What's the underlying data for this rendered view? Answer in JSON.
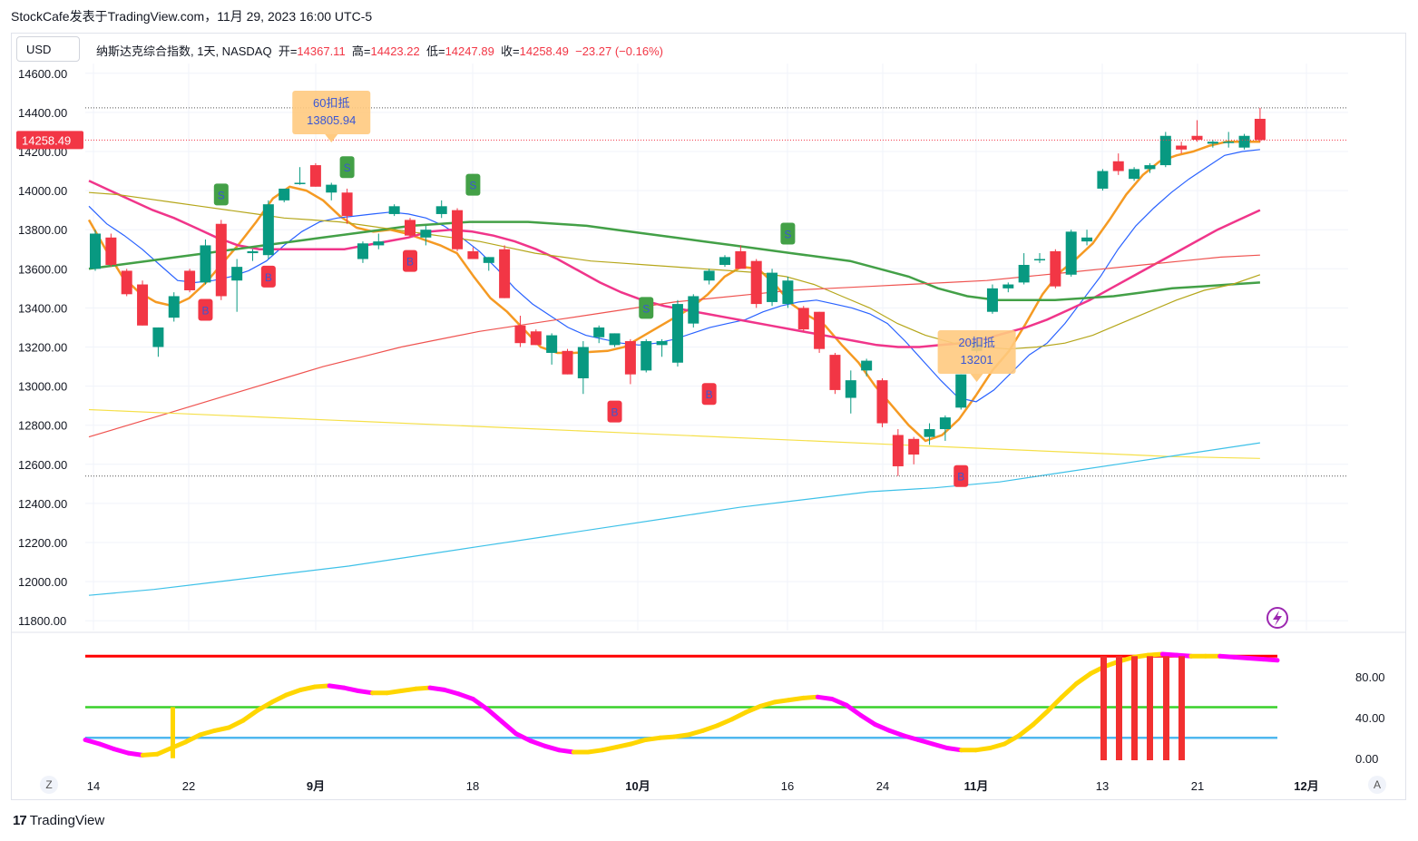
{
  "header": {
    "publisher": "StockCafe发表于TradingView.com，11月 29, 2023 16:00 UTC-5"
  },
  "currency_button": "USD",
  "infobar": {
    "symbol": "纳斯达克综合指数, 1天, NASDAQ",
    "open_label": "开=",
    "open": "14367.11",
    "high_label": "高=",
    "high": "14423.22",
    "low_label": "低=",
    "low": "14247.89",
    "close_label": "收=",
    "close": "14258.49",
    "change": "−23.27 (−0.16%)"
  },
  "price_label": "14258.49",
  "footer": {
    "brand": "TradingView"
  },
  "buttons": {
    "left": "Z",
    "right": "A"
  },
  "colors": {
    "up": "#089981",
    "down": "#f23645",
    "ma_orange": "#f59a23",
    "ma_blue": "#2962ff",
    "ma_pink": "#f0358a",
    "ma_green": "#43a047",
    "ma_olive": "#b5a61a",
    "ma_red": "#ef5350",
    "ma_yellow": "#f5e04a",
    "ma_cyan": "#3ec1e8",
    "osc_up": "#ffd600",
    "osc_down": "#ff00ff",
    "osc_red_line": "#ff0000",
    "osc_green_line": "#39d12a",
    "osc_blue_line": "#4fb8ef"
  },
  "chart_data": [
    {
      "type": "candlestick",
      "title": "纳斯达克综合指数, 1天, NASDAQ",
      "ylim": [
        11750,
        14650
      ],
      "y_ticks": [
        "14600.00",
        "14400.00",
        "14200.00",
        "14000.00",
        "13800.00",
        "13600.00",
        "13400.00",
        "13200.00",
        "13000.00",
        "12800.00",
        "12600.00",
        "12400.00",
        "12200.00",
        "12000.00",
        "11800.00"
      ],
      "x_ticks": [
        "14",
        "22",
        "9月",
        "18",
        "10月",
        "16",
        "24",
        "11月",
        "13",
        "21",
        "12月"
      ],
      "candles": [
        {
          "o": 13600,
          "h": 13800,
          "l": 13590,
          "c": 13780
        },
        {
          "o": 13760,
          "h": 13780,
          "l": 13610,
          "c": 13620
        },
        {
          "o": 13590,
          "h": 13600,
          "l": 13460,
          "c": 13470
        },
        {
          "o": 13520,
          "h": 13540,
          "l": 13310,
          "c": 13310
        },
        {
          "o": 13200,
          "h": 13300,
          "l": 13150,
          "c": 13300
        },
        {
          "o": 13350,
          "h": 13480,
          "l": 13330,
          "c": 13460
        },
        {
          "o": 13590,
          "h": 13600,
          "l": 13480,
          "c": 13490
        },
        {
          "o": 13530,
          "h": 13750,
          "l": 13520,
          "c": 13720
        },
        {
          "o": 13830,
          "h": 13850,
          "l": 13440,
          "c": 13460
        },
        {
          "o": 13540,
          "h": 13650,
          "l": 13380,
          "c": 13610
        },
        {
          "o": 13680,
          "h": 13700,
          "l": 13640,
          "c": 13690
        },
        {
          "o": 13670,
          "h": 13950,
          "l": 13650,
          "c": 13930
        },
        {
          "o": 13950,
          "h": 14010,
          "l": 13940,
          "c": 14010
        },
        {
          "o": 14040,
          "h": 14120,
          "l": 14030,
          "c": 14040
        },
        {
          "o": 14130,
          "h": 14140,
          "l": 14020,
          "c": 14020
        },
        {
          "o": 13990,
          "h": 14040,
          "l": 13950,
          "c": 14030
        },
        {
          "o": 13990,
          "h": 14010,
          "l": 13830,
          "c": 13870
        },
        {
          "o": 13650,
          "h": 13740,
          "l": 13630,
          "c": 13730
        },
        {
          "o": 13720,
          "h": 13780,
          "l": 13700,
          "c": 13740
        },
        {
          "o": 13880,
          "h": 13930,
          "l": 13870,
          "c": 13920
        },
        {
          "o": 13850,
          "h": 13860,
          "l": 13760,
          "c": 13770
        },
        {
          "o": 13760,
          "h": 13820,
          "l": 13720,
          "c": 13800
        },
        {
          "o": 13880,
          "h": 13950,
          "l": 13860,
          "c": 13920
        },
        {
          "o": 13900,
          "h": 13910,
          "l": 13690,
          "c": 13700
        },
        {
          "o": 13690,
          "h": 13710,
          "l": 13650,
          "c": 13650
        },
        {
          "o": 13630,
          "h": 13660,
          "l": 13590,
          "c": 13660
        },
        {
          "o": 13700,
          "h": 13720,
          "l": 13450,
          "c": 13450
        },
        {
          "o": 13310,
          "h": 13360,
          "l": 13200,
          "c": 13220
        },
        {
          "o": 13280,
          "h": 13290,
          "l": 13210,
          "c": 13210
        },
        {
          "o": 13170,
          "h": 13270,
          "l": 13110,
          "c": 13260
        },
        {
          "o": 13180,
          "h": 13190,
          "l": 13060,
          "c": 13060
        },
        {
          "o": 13040,
          "h": 13230,
          "l": 12960,
          "c": 13200
        },
        {
          "o": 13250,
          "h": 13310,
          "l": 13220,
          "c": 13300
        },
        {
          "o": 13210,
          "h": 13270,
          "l": 13200,
          "c": 13270
        },
        {
          "o": 13230,
          "h": 13240,
          "l": 13010,
          "c": 13060
        },
        {
          "o": 13080,
          "h": 13240,
          "l": 13070,
          "c": 13230
        },
        {
          "o": 13210,
          "h": 13240,
          "l": 13150,
          "c": 13230
        },
        {
          "o": 13120,
          "h": 13440,
          "l": 13100,
          "c": 13420
        },
        {
          "o": 13320,
          "h": 13470,
          "l": 13300,
          "c": 13460
        },
        {
          "o": 13540,
          "h": 13600,
          "l": 13520,
          "c": 13590
        },
        {
          "o": 13620,
          "h": 13670,
          "l": 13610,
          "c": 13660
        },
        {
          "o": 13690,
          "h": 13720,
          "l": 13600,
          "c": 13600
        },
        {
          "o": 13640,
          "h": 13650,
          "l": 13400,
          "c": 13420
        },
        {
          "o": 13430,
          "h": 13600,
          "l": 13410,
          "c": 13580
        },
        {
          "o": 13420,
          "h": 13560,
          "l": 13400,
          "c": 13540
        },
        {
          "o": 13400,
          "h": 13410,
          "l": 13280,
          "c": 13290
        },
        {
          "o": 13380,
          "h": 13380,
          "l": 13170,
          "c": 13190
        },
        {
          "o": 13160,
          "h": 13170,
          "l": 12960,
          "c": 12980
        },
        {
          "o": 12940,
          "h": 13080,
          "l": 12860,
          "c": 13030
        },
        {
          "o": 13080,
          "h": 13140,
          "l": 13050,
          "c": 13130
        },
        {
          "o": 13030,
          "h": 13040,
          "l": 12790,
          "c": 12810
        },
        {
          "o": 12750,
          "h": 12780,
          "l": 12540,
          "c": 12590
        },
        {
          "o": 12730,
          "h": 12740,
          "l": 12600,
          "c": 12650
        },
        {
          "o": 12740,
          "h": 12810,
          "l": 12700,
          "c": 12780
        },
        {
          "o": 12780,
          "h": 12850,
          "l": 12720,
          "c": 12840
        },
        {
          "o": 12890,
          "h": 13060,
          "l": 12880,
          "c": 13060
        },
        {
          "o": 13180,
          "h": 13240,
          "l": 13170,
          "c": 13230
        },
        {
          "o": 13380,
          "h": 13520,
          "l": 13370,
          "c": 13500
        },
        {
          "o": 13500,
          "h": 13530,
          "l": 13480,
          "c": 13520
        },
        {
          "o": 13530,
          "h": 13680,
          "l": 13520,
          "c": 13620
        },
        {
          "o": 13650,
          "h": 13680,
          "l": 13630,
          "c": 13650
        },
        {
          "o": 13690,
          "h": 13700,
          "l": 13500,
          "c": 13510
        },
        {
          "o": 13570,
          "h": 13800,
          "l": 13560,
          "c": 13790
        },
        {
          "o": 13740,
          "h": 13800,
          "l": 13720,
          "c": 13760
        },
        {
          "o": 14010,
          "h": 14110,
          "l": 14000,
          "c": 14100
        },
        {
          "o": 14150,
          "h": 14190,
          "l": 14080,
          "c": 14100
        },
        {
          "o": 14060,
          "h": 14120,
          "l": 14050,
          "c": 14110
        },
        {
          "o": 14110,
          "h": 14140,
          "l": 14090,
          "c": 14130
        },
        {
          "o": 14130,
          "h": 14300,
          "l": 14120,
          "c": 14280
        },
        {
          "o": 14230,
          "h": 14250,
          "l": 14190,
          "c": 14210
        },
        {
          "o": 14280,
          "h": 14360,
          "l": 14250,
          "c": 14260
        },
        {
          "o": 14240,
          "h": 14260,
          "l": 14220,
          "c": 14250
        },
        {
          "o": 14250,
          "h": 14300,
          "l": 14220,
          "c": 14250
        },
        {
          "o": 14220,
          "h": 14290,
          "l": 14210,
          "c": 14280
        },
        {
          "o": 14367.11,
          "h": 14423.22,
          "l": 14247.89,
          "c": 14258.49
        }
      ],
      "signals": [
        {
          "i": 7,
          "type": "B",
          "v": 13390
        },
        {
          "i": 8,
          "type": "S",
          "v": 13980
        },
        {
          "i": 11,
          "type": "B",
          "v": 13560
        },
        {
          "i": 16,
          "type": "S",
          "v": 14120
        },
        {
          "i": 20,
          "type": "B",
          "v": 13640
        },
        {
          "i": 24,
          "type": "S",
          "v": 14030
        },
        {
          "i": 33,
          "type": "B",
          "v": 12870
        },
        {
          "i": 35,
          "type": "S",
          "v": 13400
        },
        {
          "i": 39,
          "type": "B",
          "v": 12960
        },
        {
          "i": 44,
          "type": "S",
          "v": 13780
        },
        {
          "i": 55,
          "type": "B",
          "v": 12540
        }
      ],
      "annotations": [
        {
          "label": "60扣抵",
          "value": "13805.94",
          "i": 15
        },
        {
          "label": "20扣抵",
          "value": "13201",
          "i": 56
        }
      ],
      "moving_averages": [
        {
          "color": "ma_orange",
          "values": [
            13850,
            13700,
            13560,
            13480,
            13430,
            13410,
            13450,
            13530,
            13630,
            13730,
            13840,
            13960,
            14020,
            14000,
            13950,
            13870,
            13810,
            13790,
            13800,
            13780,
            13750,
            13720,
            13680,
            13560,
            13450,
            13380,
            13290,
            13200,
            13170,
            13170,
            13175,
            13180,
            13200,
            13250,
            13300,
            13350,
            13400,
            13470,
            13560,
            13610,
            13600,
            13520,
            13420,
            13360,
            13310,
            13210,
            13120,
            13000,
            12900,
            12800,
            12720,
            12750,
            12830,
            12950,
            13080,
            13180,
            13320,
            13470,
            13580,
            13650,
            13730,
            13850,
            13980,
            14080,
            14150,
            14180,
            14200,
            14230,
            14250,
            14250,
            14250
          ]
        },
        {
          "color": "ma_blue",
          "values": [
            13920,
            13830,
            13770,
            13700,
            13620,
            13540,
            13530,
            13540,
            13560,
            13590,
            13640,
            13720,
            13790,
            13840,
            13860,
            13870,
            13880,
            13890,
            13880,
            13860,
            13820,
            13760,
            13690,
            13600,
            13500,
            13420,
            13360,
            13300,
            13260,
            13240,
            13220,
            13210,
            13220,
            13240,
            13270,
            13300,
            13320,
            13340,
            13380,
            13410,
            13430,
            13440,
            13420,
            13400,
            13370,
            13320,
            13230,
            13130,
            13030,
            12940,
            12920,
            12980,
            13070,
            13160,
            13220,
            13320,
            13440,
            13560,
            13700,
            13820,
            13910,
            13990,
            14060,
            14120,
            14180,
            14200,
            14210
          ]
        },
        {
          "color": "ma_pink",
          "values": [
            14050,
            14000,
            13950,
            13900,
            13860,
            13810,
            13760,
            13720,
            13700,
            13700,
            13700,
            13700,
            13700,
            13720,
            13740,
            13760,
            13790,
            13800,
            13790,
            13770,
            13740,
            13700,
            13650,
            13590,
            13530,
            13480,
            13440,
            13410,
            13390,
            13370,
            13350,
            13330,
            13310,
            13290,
            13270,
            13250,
            13230,
            13210,
            13200,
            13200,
            13210,
            13220,
            13240,
            13270,
            13300,
            13340,
            13390,
            13440,
            13500,
            13560,
            13620,
            13680,
            13740,
            13800,
            13850,
            13900
          ]
        },
        {
          "color": "ma_green",
          "values": [
            13600,
            13620,
            13640,
            13660,
            13680,
            13700,
            13720,
            13740,
            13760,
            13780,
            13800,
            13820,
            13830,
            13840,
            13840,
            13840,
            13830,
            13820,
            13800,
            13780,
            13760,
            13740,
            13720,
            13700,
            13680,
            13660,
            13640,
            13600,
            13560,
            13500,
            13460,
            13440,
            13440,
            13440,
            13450,
            13460,
            13480,
            13500,
            13510,
            13520,
            13530
          ]
        },
        {
          "color": "ma_olive",
          "values": [
            13990,
            13980,
            13960,
            13940,
            13920,
            13900,
            13880,
            13860,
            13850,
            13840,
            13820,
            13800,
            13780,
            13760,
            13740,
            13710,
            13680,
            13660,
            13640,
            13630,
            13620,
            13610,
            13600,
            13590,
            13580,
            13560,
            13520,
            13460,
            13400,
            13320,
            13260,
            13220,
            13200,
            13190,
            13200,
            13220,
            13260,
            13320,
            13380,
            13440,
            13490,
            13520,
            13570
          ]
        },
        {
          "color": "ma_red",
          "values": [
            12740,
            12800,
            12860,
            12920,
            12980,
            13040,
            13100,
            13150,
            13200,
            13240,
            13280,
            13310,
            13340,
            13370,
            13400,
            13430,
            13450,
            13470,
            13490,
            13500,
            13510,
            13520,
            13530,
            13540,
            13560,
            13580,
            13600,
            13620,
            13640,
            13660,
            13670
          ]
        },
        {
          "color": "ma_yellow",
          "values": [
            12880,
            12860,
            12840,
            12820,
            12800,
            12780,
            12760,
            12740,
            12720,
            12700,
            12680,
            12660,
            12640,
            12630
          ]
        },
        {
          "color": "ma_cyan",
          "values": [
            11930,
            11960,
            12000,
            12040,
            12080,
            12130,
            12180,
            12230,
            12280,
            12330,
            12380,
            12420,
            12460,
            12480,
            12510,
            12560,
            12610,
            12660,
            12710
          ]
        }
      ]
    },
    {
      "type": "line",
      "ylim": [
        -2,
        110
      ],
      "y_ticks": [
        "80.00",
        "40.00",
        "0.00"
      ],
      "levels": [
        {
          "value": 100,
          "color": "osc_red_line"
        },
        {
          "value": 50,
          "color": "osc_green_line"
        },
        {
          "value": 20,
          "color": "osc_blue_line"
        }
      ],
      "oscillator": [
        18,
        14,
        9,
        5,
        3,
        4,
        10,
        16,
        23,
        27,
        30,
        37,
        47,
        55,
        62,
        67,
        70,
        71,
        69,
        66,
        64,
        64,
        66,
        68,
        69,
        67,
        63,
        58,
        48,
        36,
        24,
        17,
        12,
        8,
        6,
        6,
        8,
        11,
        14,
        18,
        20,
        21,
        23,
        27,
        32,
        38,
        45,
        51,
        55,
        57,
        59,
        60,
        58,
        52,
        42,
        33,
        27,
        22,
        18,
        14,
        10,
        8,
        8,
        10,
        14,
        22,
        33,
        46,
        60,
        73,
        83,
        90,
        95,
        99,
        101,
        102,
        101,
        100,
        100,
        100,
        99,
        98,
        97,
        96
      ]
    }
  ]
}
